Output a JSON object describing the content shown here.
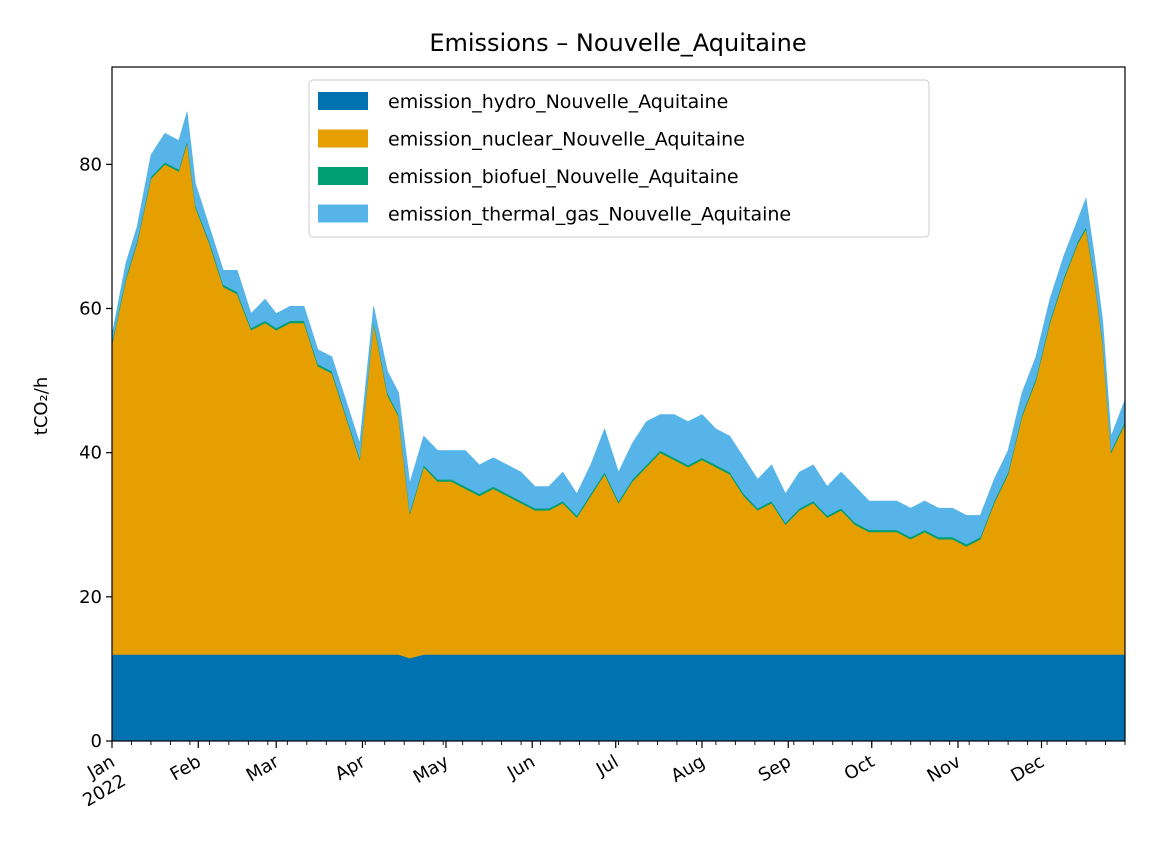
{
  "chart_data": {
    "type": "area",
    "stacked": true,
    "title": "Emissions – Nouvelle_Aquitaine",
    "ylabel": "tCO₂/h",
    "xlabel": "",
    "ylim": [
      0,
      93.5
    ],
    "yticks": [
      0,
      20,
      40,
      60,
      80
    ],
    "xlim": [
      "2022-01-01",
      "2022-12-31"
    ],
    "grid": false,
    "legend_position": "top-center",
    "x_ticks": [
      {
        "date": "2022-01-01",
        "label": "Jan",
        "label2": "2022"
      },
      {
        "date": "2022-02-01",
        "label": "Feb"
      },
      {
        "date": "2022-03-01",
        "label": "Mar"
      },
      {
        "date": "2022-04-01",
        "label": "Apr"
      },
      {
        "date": "2022-05-01",
        "label": "May"
      },
      {
        "date": "2022-06-01",
        "label": "Jun"
      },
      {
        "date": "2022-07-01",
        "label": "Jul"
      },
      {
        "date": "2022-08-01",
        "label": "Aug"
      },
      {
        "date": "2022-09-01",
        "label": "Sep"
      },
      {
        "date": "2022-10-01",
        "label": "Oct"
      },
      {
        "date": "2022-11-01",
        "label": "Nov"
      },
      {
        "date": "2022-12-01",
        "label": "Dec"
      }
    ],
    "x": [
      "2022-01-01",
      "2022-01-06",
      "2022-01-10",
      "2022-01-15",
      "2022-01-20",
      "2022-01-25",
      "2022-01-28",
      "2022-01-31",
      "2022-02-05",
      "2022-02-10",
      "2022-02-15",
      "2022-02-20",
      "2022-02-25",
      "2022-03-01",
      "2022-03-06",
      "2022-03-11",
      "2022-03-16",
      "2022-03-21",
      "2022-03-26",
      "2022-03-31",
      "2022-04-05",
      "2022-04-10",
      "2022-04-14",
      "2022-04-18",
      "2022-04-23",
      "2022-04-28",
      "2022-05-03",
      "2022-05-08",
      "2022-05-13",
      "2022-05-18",
      "2022-05-23",
      "2022-05-28",
      "2022-06-02",
      "2022-06-07",
      "2022-06-12",
      "2022-06-17",
      "2022-06-22",
      "2022-06-27",
      "2022-07-02",
      "2022-07-07",
      "2022-07-12",
      "2022-07-17",
      "2022-07-22",
      "2022-07-27",
      "2022-08-01",
      "2022-08-06",
      "2022-08-11",
      "2022-08-16",
      "2022-08-21",
      "2022-08-26",
      "2022-08-31",
      "2022-09-05",
      "2022-09-10",
      "2022-09-15",
      "2022-09-20",
      "2022-09-25",
      "2022-09-30",
      "2022-10-05",
      "2022-10-10",
      "2022-10-15",
      "2022-10-20",
      "2022-10-25",
      "2022-10-30",
      "2022-11-04",
      "2022-11-09",
      "2022-11-14",
      "2022-11-19",
      "2022-11-24",
      "2022-11-29",
      "2022-12-04",
      "2022-12-09",
      "2022-12-14",
      "2022-12-17",
      "2022-12-20",
      "2022-12-23",
      "2022-12-26",
      "2022-12-31"
    ],
    "series": [
      {
        "name": "emission_hydro_Nouvelle_Aquitaine",
        "color": "#0072b2",
        "values": [
          12,
          12,
          12,
          12,
          12,
          12,
          12,
          12,
          12,
          12,
          12,
          12,
          12,
          12,
          12,
          12,
          12,
          12,
          12,
          12,
          12,
          12,
          12,
          11.5,
          12,
          12,
          12,
          12,
          12,
          12,
          12,
          12,
          12,
          12,
          12,
          12,
          12,
          12,
          12,
          12,
          12,
          12,
          12,
          12,
          12,
          12,
          12,
          12,
          12,
          12,
          12,
          12,
          12,
          12,
          12,
          12,
          12,
          12,
          12,
          12,
          12,
          12,
          12,
          12,
          12,
          12,
          12,
          12,
          12,
          12,
          12,
          12,
          12,
          12,
          12,
          12,
          12
        ]
      },
      {
        "name": "emission_nuclear_Nouvelle_Aquitaine",
        "color": "#e69f00",
        "values": [
          43,
          52,
          57,
          66,
          68,
          67,
          71,
          62,
          57,
          51,
          50,
          45,
          46,
          45,
          46,
          46,
          40,
          39,
          33,
          27,
          46,
          36,
          33,
          20,
          26,
          24,
          24,
          23,
          22,
          23,
          22,
          21,
          20,
          20,
          21,
          19,
          22,
          25,
          21,
          24,
          26,
          28,
          27,
          26,
          27,
          26,
          25,
          22,
          20,
          21,
          18,
          20,
          21,
          19,
          20,
          18,
          17,
          17,
          17,
          16,
          17,
          16,
          16,
          15,
          16,
          21,
          25,
          33,
          38,
          46,
          52,
          57,
          59,
          52,
          43,
          28,
          32
        ]
      },
      {
        "name": "emission_biofuel_Nouvelle_Aquitaine",
        "color": "#009e73",
        "values": [
          0.3,
          0.3,
          0.3,
          0.3,
          0.3,
          0.3,
          0.3,
          0.3,
          0.3,
          0.3,
          0.3,
          0.3,
          0.3,
          0.3,
          0.3,
          0.3,
          0.3,
          0.3,
          0.3,
          0.3,
          0.3,
          0.3,
          0.3,
          0.3,
          0.3,
          0.3,
          0.3,
          0.3,
          0.3,
          0.3,
          0.3,
          0.3,
          0.3,
          0.3,
          0.3,
          0.3,
          0.3,
          0.3,
          0.3,
          0.3,
          0.3,
          0.3,
          0.3,
          0.3,
          0.3,
          0.3,
          0.3,
          0.3,
          0.3,
          0.3,
          0.3,
          0.3,
          0.3,
          0.3,
          0.3,
          0.3,
          0.3,
          0.3,
          0.3,
          0.3,
          0.3,
          0.3,
          0.3,
          0.3,
          0.3,
          0.3,
          0.3,
          0.3,
          0.3,
          0.3,
          0.3,
          0.3,
          0.3,
          0.3,
          0.3,
          0.3,
          0.3
        ]
      },
      {
        "name": "emission_thermal_gas_Nouvelle_Aquitaine",
        "color": "#56b4e9",
        "values": [
          1,
          2,
          2,
          3,
          4,
          4,
          4,
          3,
          2,
          2,
          3,
          2,
          3,
          2,
          2,
          2,
          2,
          2,
          2,
          2,
          2,
          3,
          3,
          4,
          4,
          4,
          4,
          5,
          4,
          4,
          4,
          4,
          3,
          3,
          4,
          3,
          4,
          6,
          4,
          5,
          6,
          5,
          6,
          6,
          6,
          5,
          5,
          5,
          4,
          5,
          4,
          5,
          5,
          4,
          5,
          5,
          4,
          4,
          4,
          4,
          4,
          4,
          4,
          4,
          3,
          3,
          3,
          3,
          3,
          3,
          3,
          3,
          4,
          3,
          3,
          2,
          3
        ]
      }
    ]
  }
}
